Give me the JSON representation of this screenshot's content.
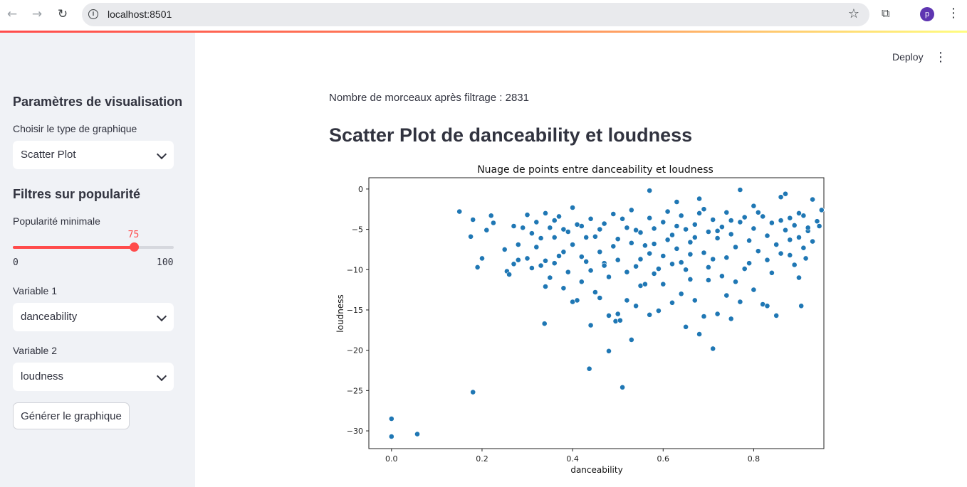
{
  "browser": {
    "url": "localhost:8501",
    "avatar_letter": "p",
    "icons": {
      "back": "arrow-left-icon",
      "forward": "arrow-right-icon",
      "reload": "reload-icon",
      "info": "info-icon",
      "bookmark": "star-icon",
      "extensions": "puzzle-icon",
      "menu": "kebab-icon"
    }
  },
  "sidebar": {
    "section_title": "Paramètres de visualisation",
    "chart_type_label": "Choisir le type de graphique",
    "chart_type_value": "Scatter Plot",
    "filters_title": "Filtres sur popularité",
    "popularity_label": "Popularité minimale",
    "popularity_value": "75",
    "popularity_min": "0",
    "popularity_max": "100",
    "variable1_label": "Variable 1",
    "variable1_value": "danceability",
    "variable2_label": "Variable 2",
    "variable2_value": "loudness",
    "generate_button": "Générer le graphique"
  },
  "header": {
    "deploy": "Deploy"
  },
  "main": {
    "count_text": "Nombre de morceaux après filtrage : 2831",
    "heading": "Scatter Plot de danceability et loudness"
  },
  "colors": {
    "accent": "#ff4b4b",
    "sidebar_bg": "#f0f2f6",
    "point": "#1f77b4"
  },
  "chart_data": {
    "type": "scatter",
    "title": "Nuage de points entre danceability et loudness",
    "xlabel": "danceability",
    "ylabel": "loudness",
    "xlim": [
      -0.05,
      0.955
    ],
    "ylim": [
      -32.2,
      1.4
    ],
    "xticks": [
      0.0,
      0.2,
      0.4,
      0.6,
      0.8
    ],
    "xtick_labels": [
      "0.0",
      "0.2",
      "0.4",
      "0.6",
      "0.8"
    ],
    "yticks": [
      0,
      -5,
      -10,
      -15,
      -20,
      -25,
      -30
    ],
    "ytick_labels": [
      "0",
      "−5",
      "−10",
      "−15",
      "−20",
      "−25",
      "−30"
    ],
    "grid": false,
    "points": [
      [
        0.0,
        -28.5
      ],
      [
        0.0,
        -30.7
      ],
      [
        0.057,
        -30.4
      ],
      [
        0.18,
        -25.2
      ],
      [
        0.437,
        -22.3
      ],
      [
        0.51,
        -24.6
      ],
      [
        0.48,
        -20.1
      ],
      [
        0.53,
        -18.7
      ],
      [
        0.71,
        -19.8
      ],
      [
        0.338,
        -16.7
      ],
      [
        0.44,
        -16.9
      ],
      [
        0.495,
        -16.4
      ],
      [
        0.65,
        -17.1
      ],
      [
        0.68,
        -18.0
      ],
      [
        0.15,
        -2.8
      ],
      [
        0.175,
        -5.9
      ],
      [
        0.18,
        -3.8
      ],
      [
        0.19,
        -9.7
      ],
      [
        0.2,
        -8.6
      ],
      [
        0.21,
        -5.1
      ],
      [
        0.22,
        -3.3
      ],
      [
        0.225,
        -4.2
      ],
      [
        0.25,
        -7.5
      ],
      [
        0.255,
        -10.2
      ],
      [
        0.26,
        -10.6
      ],
      [
        0.27,
        -4.6
      ],
      [
        0.28,
        -8.8
      ],
      [
        0.29,
        -4.8
      ],
      [
        0.3,
        -8.6
      ],
      [
        0.31,
        -9.8
      ],
      [
        0.32,
        -7.2
      ],
      [
        0.33,
        -9.5
      ],
      [
        0.34,
        -12.1
      ],
      [
        0.35,
        -11.0
      ],
      [
        0.36,
        -6.0
      ],
      [
        0.37,
        -8.3
      ],
      [
        0.38,
        -12.3
      ],
      [
        0.39,
        -10.3
      ],
      [
        0.4,
        -14.0
      ],
      [
        0.41,
        -13.8
      ],
      [
        0.42,
        -11.5
      ],
      [
        0.43,
        -9.0
      ],
      [
        0.45,
        -12.8
      ],
      [
        0.46,
        -13.5
      ],
      [
        0.47,
        -9.2
      ],
      [
        0.48,
        -15.7
      ],
      [
        0.5,
        -15.5
      ],
      [
        0.505,
        -16.3
      ],
      [
        0.52,
        -13.8
      ],
      [
        0.54,
        -14.5
      ],
      [
        0.55,
        -12.0
      ],
      [
        0.57,
        -15.6
      ],
      [
        0.59,
        -15.1
      ],
      [
        0.6,
        -11.8
      ],
      [
        0.62,
        -14.1
      ],
      [
        0.64,
        -13.0
      ],
      [
        0.66,
        -11.2
      ],
      [
        0.67,
        -13.8
      ],
      [
        0.69,
        -15.8
      ],
      [
        0.72,
        -15.5
      ],
      [
        0.74,
        -13.2
      ],
      [
        0.75,
        -16.1
      ],
      [
        0.77,
        -14.0
      ],
      [
        0.8,
        -12.5
      ],
      [
        0.82,
        -14.3
      ],
      [
        0.83,
        -14.5
      ],
      [
        0.85,
        -15.7
      ],
      [
        0.9,
        -11.0
      ],
      [
        0.905,
        -14.5
      ],
      [
        0.57,
        -0.2
      ],
      [
        0.77,
        -0.1
      ],
      [
        0.63,
        -1.6
      ],
      [
        0.68,
        -1.2
      ],
      [
        0.87,
        -0.6
      ],
      [
        0.93,
        -1.3
      ],
      [
        0.86,
        -1.0
      ],
      [
        0.95,
        -2.6
      ],
      [
        0.94,
        -4.0
      ],
      [
        0.92,
        -5.2
      ],
      [
        0.91,
        -7.3
      ],
      [
        0.89,
        -9.4
      ],
      [
        0.88,
        -6.3
      ],
      [
        0.9,
        -3.0
      ],
      [
        0.945,
        -4.6
      ],
      [
        0.93,
        -6.5
      ],
      [
        0.915,
        -8.6
      ],
      [
        0.84,
        -10.4
      ],
      [
        0.86,
        -8.0
      ],
      [
        0.88,
        -3.6
      ],
      [
        0.8,
        -2.1
      ],
      [
        0.78,
        -9.9
      ],
      [
        0.76,
        -11.5
      ],
      [
        0.73,
        -10.8
      ],
      [
        0.71,
        -8.7
      ],
      [
        0.7,
        -11.3
      ],
      [
        0.65,
        -10.0
      ],
      [
        0.62,
        -9.3
      ],
      [
        0.58,
        -10.5
      ],
      [
        0.56,
        -11.8
      ],
      [
        0.54,
        -9.6
      ],
      [
        0.52,
        -10.3
      ],
      [
        0.5,
        -8.8
      ],
      [
        0.48,
        -10.9
      ],
      [
        0.46,
        -7.8
      ],
      [
        0.44,
        -10.1
      ],
      [
        0.42,
        -8.4
      ],
      [
        0.4,
        -6.9
      ],
      [
        0.38,
        -7.8
      ],
      [
        0.36,
        -9.2
      ],
      [
        0.34,
        -8.9
      ],
      [
        0.33,
        -6.1
      ],
      [
        0.31,
        -5.5
      ],
      [
        0.3,
        -3.2
      ],
      [
        0.32,
        -4.1
      ],
      [
        0.34,
        -3.0
      ],
      [
        0.35,
        -4.8
      ],
      [
        0.37,
        -3.4
      ],
      [
        0.39,
        -5.3
      ],
      [
        0.4,
        -2.3
      ],
      [
        0.42,
        -4.6
      ],
      [
        0.44,
        -3.7
      ],
      [
        0.45,
        -5.9
      ],
      [
        0.47,
        -4.3
      ],
      [
        0.49,
        -3.1
      ],
      [
        0.5,
        -6.2
      ],
      [
        0.52,
        -4.8
      ],
      [
        0.53,
        -2.6
      ],
      [
        0.55,
        -5.4
      ],
      [
        0.57,
        -3.6
      ],
      [
        0.58,
        -6.8
      ],
      [
        0.6,
        -4.1
      ],
      [
        0.61,
        -2.8
      ],
      [
        0.62,
        -5.7
      ],
      [
        0.63,
        -7.4
      ],
      [
        0.64,
        -3.3
      ],
      [
        0.65,
        -5.0
      ],
      [
        0.66,
        -6.6
      ],
      [
        0.67,
        -4.4
      ],
      [
        0.68,
        -3.0
      ],
      [
        0.69,
        -7.9
      ],
      [
        0.7,
        -5.3
      ],
      [
        0.71,
        -3.8
      ],
      [
        0.72,
        -6.1
      ],
      [
        0.73,
        -4.7
      ],
      [
        0.74,
        -2.9
      ],
      [
        0.75,
        -5.6
      ],
      [
        0.76,
        -7.2
      ],
      [
        0.77,
        -4.1
      ],
      [
        0.78,
        -3.5
      ],
      [
        0.79,
        -6.4
      ],
      [
        0.8,
        -4.9
      ],
      [
        0.81,
        -7.7
      ],
      [
        0.82,
        -3.4
      ],
      [
        0.83,
        -5.8
      ],
      [
        0.84,
        -4.2
      ],
      [
        0.85,
        -6.9
      ],
      [
        0.86,
        -3.9
      ],
      [
        0.87,
        -5.1
      ],
      [
        0.88,
        -8.2
      ],
      [
        0.89,
        -4.5
      ],
      [
        0.9,
        -6.0
      ],
      [
        0.91,
        -3.3
      ],
      [
        0.92,
        -4.8
      ],
      [
        0.6,
        -8.3
      ],
      [
        0.64,
        -9.1
      ],
      [
        0.56,
        -7.0
      ],
      [
        0.54,
        -5.1
      ],
      [
        0.51,
        -3.7
      ],
      [
        0.49,
        -7.1
      ],
      [
        0.46,
        -5.0
      ],
      [
        0.43,
        -6.0
      ],
      [
        0.41,
        -4.4
      ],
      [
        0.38,
        -5.0
      ],
      [
        0.36,
        -3.9
      ],
      [
        0.7,
        -9.7
      ],
      [
        0.74,
        -8.5
      ],
      [
        0.79,
        -9.2
      ],
      [
        0.83,
        -8.8
      ],
      [
        0.66,
        -8.1
      ],
      [
        0.59,
        -9.9
      ],
      [
        0.55,
        -8.7
      ],
      [
        0.47,
        -9.5
      ],
      [
        0.28,
        -6.9
      ],
      [
        0.27,
        -9.3
      ],
      [
        0.58,
        -4.9
      ],
      [
        0.72,
        -5.2
      ],
      [
        0.61,
        -6.3
      ],
      [
        0.69,
        -2.5
      ],
      [
        0.75,
        -3.9
      ],
      [
        0.53,
        -6.7
      ],
      [
        0.81,
        -2.9
      ],
      [
        0.63,
        -4.6
      ],
      [
        0.57,
        -8.0
      ],
      [
        0.67,
        -6.0
      ]
    ]
  }
}
